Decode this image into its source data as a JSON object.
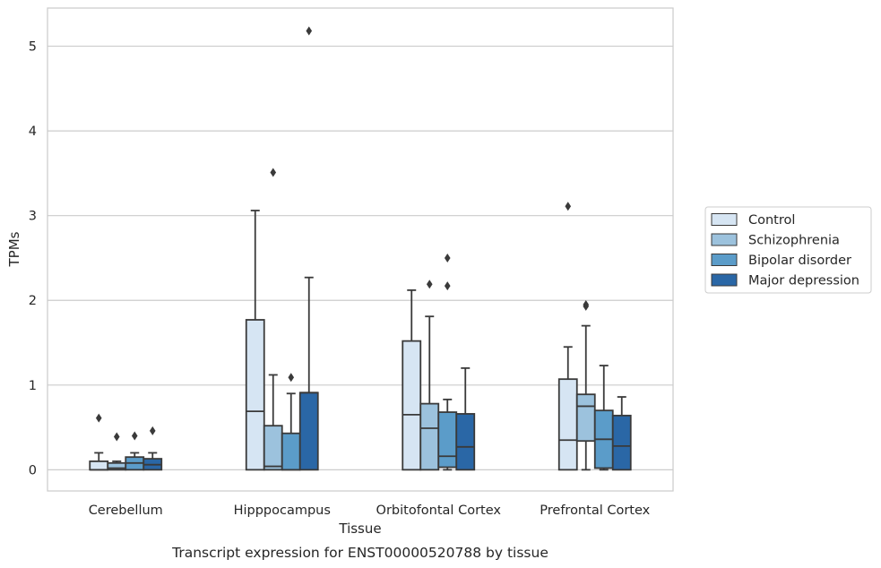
{
  "caption": "Transcript expression for ENST00000520788 by tissue",
  "chart_data": {
    "type": "boxplot",
    "xlabel": "Tissue",
    "ylabel": "TPMs",
    "ylim": [
      -0.25,
      5.45
    ],
    "yticks": [
      0,
      1,
      2,
      3,
      4,
      5
    ],
    "grid": true,
    "legend_position": "right",
    "categories": [
      "Cerebellum",
      "Hipppocampus",
      "Orbitofontal Cortex",
      "Prefrontal Cortex"
    ],
    "series": [
      {
        "name": "Control",
        "color": "#d6e5f3",
        "boxes": [
          {
            "whislo": 0,
            "q1": 0,
            "med": 0,
            "q3": 0.1,
            "whishi": 0.2,
            "fliers": [
              0.61
            ]
          },
          {
            "whislo": 0,
            "q1": 0,
            "med": 0.69,
            "q3": 1.77,
            "whishi": 3.06,
            "fliers": []
          },
          {
            "whislo": 0,
            "q1": 0,
            "med": 0.65,
            "q3": 1.52,
            "whishi": 2.12,
            "fliers": []
          },
          {
            "whislo": 0,
            "q1": 0,
            "med": 0.35,
            "q3": 1.07,
            "whishi": 1.45,
            "fliers": [
              3.11
            ]
          }
        ]
      },
      {
        "name": "Schizophrenia",
        "color": "#9cc2dd",
        "boxes": [
          {
            "whislo": 0,
            "q1": 0,
            "med": 0.02,
            "q3": 0.08,
            "whishi": 0.1,
            "fliers": [
              0.39
            ]
          },
          {
            "whislo": 0,
            "q1": 0,
            "med": 0.04,
            "q3": 0.52,
            "whishi": 1.12,
            "fliers": [
              3.51
            ]
          },
          {
            "whislo": 0,
            "q1": 0,
            "med": 0.49,
            "q3": 0.78,
            "whishi": 1.81,
            "fliers": [
              2.19
            ]
          },
          {
            "whislo": 0,
            "q1": 0.34,
            "med": 0.75,
            "q3": 0.89,
            "whishi": 1.7,
            "fliers": [
              1.93,
              1.95
            ]
          }
        ]
      },
      {
        "name": "Bipolar disorder",
        "color": "#5b9cc9",
        "boxes": [
          {
            "whislo": 0,
            "q1": 0,
            "med": 0.08,
            "q3": 0.15,
            "whishi": 0.2,
            "fliers": [
              0.4
            ]
          },
          {
            "whislo": 0,
            "q1": 0,
            "med": 0,
            "q3": 0.43,
            "whishi": 0.9,
            "fliers": [
              1.09
            ]
          },
          {
            "whislo": 0,
            "q1": 0.03,
            "med": 0.16,
            "q3": 0.68,
            "whishi": 0.83,
            "fliers": [
              2.17,
              2.5
            ]
          },
          {
            "whislo": 0,
            "q1": 0.02,
            "med": 0.36,
            "q3": 0.7,
            "whishi": 1.23,
            "fliers": []
          }
        ]
      },
      {
        "name": "Major depression",
        "color": "#2a67a6",
        "boxes": [
          {
            "whislo": 0,
            "q1": 0,
            "med": 0.06,
            "q3": 0.13,
            "whishi": 0.2,
            "fliers": [
              0.46
            ]
          },
          {
            "whislo": 0,
            "q1": 0,
            "med": 0.91,
            "q3": 0.91,
            "whishi": 2.27,
            "fliers": [
              5.18
            ]
          },
          {
            "whislo": 0,
            "q1": 0,
            "med": 0.27,
            "q3": 0.66,
            "whishi": 1.2,
            "fliers": []
          },
          {
            "whislo": 0,
            "q1": 0,
            "med": 0.28,
            "q3": 0.64,
            "whishi": 0.86,
            "fliers": []
          }
        ]
      }
    ]
  }
}
